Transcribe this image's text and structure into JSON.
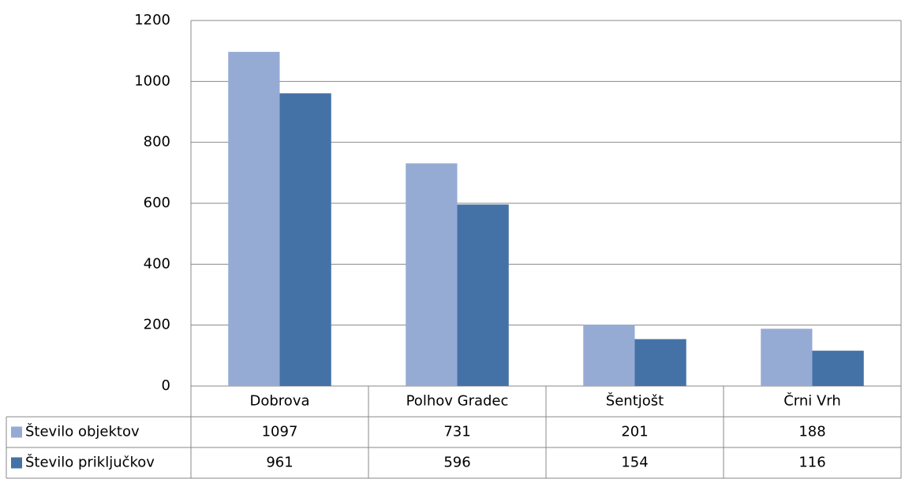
{
  "chart_data": {
    "type": "bar",
    "categories": [
      "Dobrova",
      "Polhov Gradec",
      "Šentjošt",
      "Črni Vrh"
    ],
    "series": [
      {
        "name": "Število objektov",
        "color": "#95abd4",
        "values": [
          1097,
          731,
          201,
          188
        ]
      },
      {
        "name": "Število priključkov",
        "color": "#4472a6",
        "values": [
          961,
          596,
          154,
          116
        ]
      }
    ],
    "ylim": [
      0,
      1200
    ],
    "yticks": [
      0,
      200,
      400,
      600,
      800,
      1000,
      1200
    ],
    "grid": true
  }
}
